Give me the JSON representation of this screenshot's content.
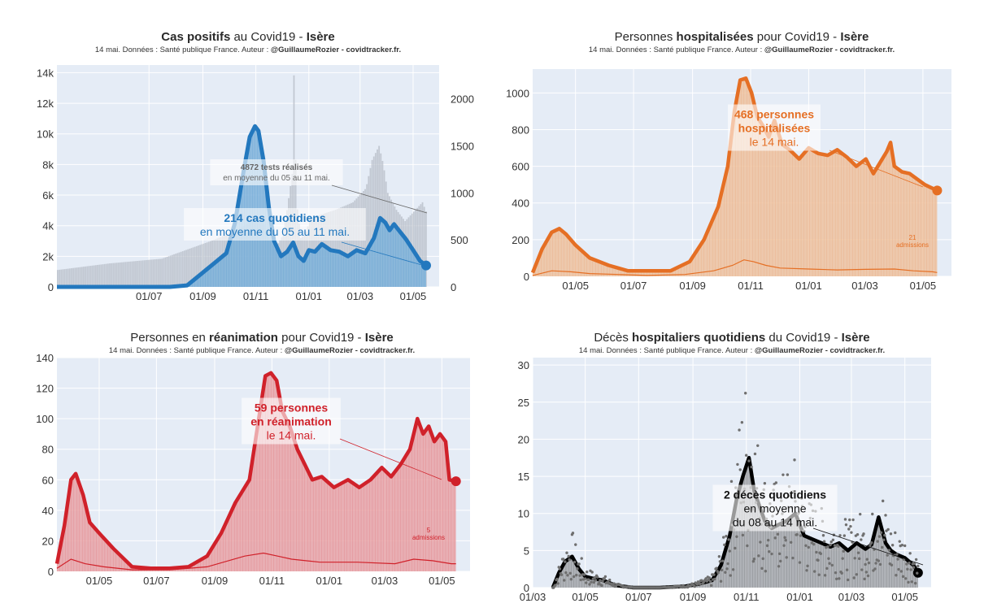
{
  "colors": {
    "plot_bg": "#e5ecf6",
    "grid": "#ffffff",
    "cases": "#2378be",
    "cases_fill": "#7fb3da",
    "tests_bar": "#b9bfc9",
    "hosp": "#e56f24",
    "hosp_fill": "#efc29f",
    "rea": "#d0212a",
    "rea_fill": "#e9a3a7",
    "deaths": "#000000",
    "deaths_fill": "#a6a8ab",
    "deaths_dots": "#6f6f6f"
  },
  "chart_data": [
    {
      "type": "area",
      "title": {
        "bold_prefix": "Cas positifs",
        "middle": " au Covid19 - ",
        "bold_suffix": "Isère"
      },
      "subtitle": {
        "text": "14 mai. Données : Santé publique France. Auteur : ",
        "author": "@GuillaumeRozier - covidtracker.fr."
      },
      "x_ticks": [
        "01/07",
        "01/09",
        "01/11",
        "01/01",
        "01/03",
        "01/05"
      ],
      "x_tick_days": [
        106,
        168,
        229,
        290,
        349,
        410
      ],
      "xlim_days": [
        0,
        440
      ],
      "y_ticks": [
        "0",
        "2k",
        "4k",
        "6k",
        "8k",
        "10k",
        "12k",
        "14k"
      ],
      "y_tick_values": [
        0,
        2000,
        4000,
        6000,
        8000,
        10000,
        12000,
        14000
      ],
      "ylim": [
        0,
        14500
      ],
      "y2_ticks": [
        "0",
        "500",
        "1000",
        "1500",
        "2000"
      ],
      "y2_tick_values": [
        0,
        500,
        1000,
        1500,
        2000
      ],
      "y2lim": [
        0,
        2360
      ],
      "series": [
        {
          "name": "tests",
          "kind": "bars_right_axis",
          "x_days": [
            0,
            60,
            120,
            150,
            180,
            210,
            225,
            235,
            240,
            250,
            260,
            270,
            272,
            275,
            280,
            285,
            290,
            300,
            320,
            340,
            355,
            362,
            370,
            375,
            380,
            390,
            400,
            410,
            420,
            425
          ],
          "values": [
            180,
            250,
            300,
            400,
            500,
            620,
            720,
            760,
            600,
            400,
            560,
            1200,
            2250,
            900,
            520,
            560,
            700,
            760,
            820,
            900,
            1050,
            1350,
            1500,
            1300,
            1000,
            820,
            700,
            800,
            900,
            780
          ]
        },
        {
          "name": "cas",
          "kind": "line_fill",
          "x_days": [
            0,
            40,
            80,
            110,
            130,
            150,
            165,
            180,
            195,
            205,
            215,
            222,
            228,
            232,
            238,
            244,
            250,
            258,
            265,
            272,
            278,
            284,
            290,
            297,
            305,
            315,
            325,
            335,
            345,
            355,
            365,
            372,
            378,
            383,
            388,
            395,
            402,
            410,
            418,
            425
          ],
          "values": [
            0,
            0,
            0,
            0,
            0,
            100,
            800,
            1500,
            2200,
            4200,
            7600,
            9800,
            10500,
            10200,
            8200,
            5200,
            3000,
            2000,
            2300,
            2900,
            2000,
            1700,
            2400,
            2300,
            2800,
            2400,
            2300,
            2000,
            2400,
            2200,
            3200,
            4500,
            4200,
            3700,
            4100,
            3600,
            3100,
            2400,
            1700,
            1400
          ]
        }
      ],
      "annotations": [
        {
          "bold": "4872 tests réalisés",
          "text": "en moyenne du 05 au 11 mai."
        },
        {
          "bold": "214 cas quotidiens",
          "text": "en moyenne du 05 au 11 mai."
        }
      ]
    },
    {
      "type": "area",
      "title": {
        "bold_prefix": "",
        "pre": "Personnes ",
        "bold_mid": "hospitalisées",
        "middle": " pour Covid19 - ",
        "bold_suffix": "Isère"
      },
      "subtitle": {
        "text": "14 mai. Données : Santé publique France. Auteur : ",
        "author": "@GuillaumeRozier - covidtracker.fr."
      },
      "x_ticks": [
        "01/05",
        "01/07",
        "01/09",
        "01/11",
        "01/01",
        "01/03",
        "01/05"
      ],
      "x_tick_days": [
        45,
        106,
        168,
        229,
        290,
        349,
        410
      ],
      "xlim_days": [
        0,
        440
      ],
      "y_ticks": [
        "0",
        "200",
        "400",
        "600",
        "800",
        "1000"
      ],
      "y_tick_values": [
        0,
        200,
        400,
        600,
        800,
        1000
      ],
      "ylim": [
        0,
        1130
      ],
      "series": [
        {
          "name": "hospitalisées",
          "kind": "line_fill",
          "x_days": [
            0,
            10,
            20,
            28,
            35,
            45,
            60,
            80,
            100,
            120,
            145,
            165,
            180,
            195,
            205,
            212,
            218,
            224,
            230,
            236,
            242,
            248,
            254,
            262,
            270,
            280,
            290,
            300,
            310,
            320,
            330,
            340,
            350,
            358,
            365,
            372,
            376,
            380,
            388,
            396,
            404,
            412,
            420,
            425
          ],
          "values": [
            20,
            150,
            240,
            260,
            230,
            170,
            100,
            60,
            30,
            30,
            30,
            80,
            200,
            380,
            600,
            900,
            1070,
            1080,
            1000,
            870,
            820,
            760,
            850,
            720,
            690,
            640,
            700,
            670,
            660,
            690,
            650,
            600,
            640,
            560,
            620,
            680,
            730,
            600,
            570,
            560,
            530,
            500,
            480,
            468
          ]
        },
        {
          "name": "admissions",
          "kind": "thin_line",
          "x_days": [
            0,
            20,
            40,
            60,
            90,
            120,
            160,
            190,
            210,
            222,
            232,
            245,
            260,
            290,
            320,
            350,
            380,
            400,
            420,
            425
          ],
          "values": [
            5,
            30,
            25,
            15,
            10,
            5,
            10,
            30,
            60,
            90,
            80,
            60,
            45,
            40,
            35,
            38,
            40,
            30,
            25,
            21
          ]
        }
      ],
      "annotations": [
        {
          "bold": "468 personnes\nhospitalisées",
          "text": "le 14 mai."
        },
        {
          "bold": "21",
          "text": "admissions"
        }
      ]
    },
    {
      "type": "area",
      "title": {
        "pre": "Personnes en ",
        "bold_mid": "réanimation",
        "middle": " pour Covid19 - ",
        "bold_suffix": "Isère"
      },
      "subtitle": {
        "text": "14 mai. Données : Santé publique France. Auteur : ",
        "author": "@GuillaumeRozier - covidtracker.fr."
      },
      "x_ticks": [
        "01/05",
        "01/07",
        "01/09",
        "01/11",
        "01/01",
        "01/03",
        "01/05"
      ],
      "x_tick_days": [
        45,
        106,
        168,
        229,
        290,
        349,
        410
      ],
      "xlim_days": [
        0,
        440
      ],
      "y_ticks": [
        "0",
        "20",
        "40",
        "60",
        "80",
        "100",
        "120",
        "140"
      ],
      "y_tick_values": [
        0,
        20,
        40,
        60,
        80,
        100,
        120,
        140
      ],
      "ylim": [
        0,
        140
      ],
      "series": [
        {
          "name": "réanimation",
          "kind": "line_fill",
          "x_days": [
            0,
            8,
            15,
            20,
            28,
            35,
            45,
            60,
            80,
            100,
            120,
            140,
            160,
            175,
            190,
            205,
            215,
            222,
            228,
            234,
            240,
            248,
            256,
            264,
            272,
            282,
            295,
            310,
            322,
            334,
            346,
            356,
            366,
            376,
            384,
            390,
            396,
            402,
            408,
            414,
            418,
            425
          ],
          "values": [
            5,
            30,
            60,
            64,
            50,
            32,
            25,
            15,
            3,
            2,
            2,
            3,
            10,
            25,
            45,
            60,
            100,
            128,
            130,
            125,
            105,
            95,
            80,
            70,
            60,
            62,
            55,
            60,
            55,
            60,
            68,
            62,
            70,
            80,
            100,
            90,
            95,
            85,
            90,
            85,
            60,
            59
          ]
        },
        {
          "name": "admissions",
          "kind": "thin_line",
          "x_days": [
            0,
            15,
            30,
            50,
            80,
            120,
            160,
            200,
            220,
            235,
            250,
            280,
            320,
            360,
            380,
            400,
            420,
            425
          ],
          "values": [
            2,
            8,
            5,
            3,
            1,
            1,
            3,
            10,
            12,
            10,
            8,
            6,
            6,
            5,
            8,
            7,
            5,
            5
          ]
        }
      ],
      "annotations": [
        {
          "bold": "59 personnes\nen réanimation",
          "text": "le 14 mai."
        },
        {
          "bold": "5",
          "text": "admissions"
        }
      ]
    },
    {
      "type": "line",
      "title": {
        "pre": "Décès ",
        "bold_mid": "hospitaliers quotidiens",
        "middle": " du Covid19 - ",
        "bold_suffix": "Isère"
      },
      "subtitle": {
        "text": "14 mai. Données : Santé publique France. Auteur : ",
        "author": "@GuillaumeRozier - covidtracker.fr."
      },
      "x_ticks": [
        "01/03",
        "01/05",
        "01/07",
        "01/09",
        "01/11",
        "01/01",
        "01/03",
        "01/05"
      ],
      "x_tick_days": [
        -15,
        45,
        106,
        168,
        229,
        290,
        349,
        410
      ],
      "xlim_days": [
        -15,
        440
      ],
      "y_ticks": [
        "0",
        "5",
        "10",
        "15",
        "20",
        "25",
        "30"
      ],
      "y_tick_values": [
        0,
        5,
        10,
        15,
        20,
        25,
        30
      ],
      "ylim": [
        0,
        31
      ],
      "series": [
        {
          "name": "décès",
          "kind": "line_fill",
          "x_days": [
            8,
            15,
            22,
            30,
            38,
            45,
            55,
            65,
            80,
            100,
            130,
            160,
            175,
            190,
            200,
            210,
            218,
            225,
            232,
            238,
            244,
            250,
            258,
            266,
            275,
            285,
            295,
            305,
            315,
            325,
            335,
            345,
            355,
            365,
            372,
            380,
            388,
            394,
            400,
            410,
            420,
            425
          ],
          "values": [
            0,
            2,
            3.5,
            4.2,
            2.5,
            1.5,
            1.2,
            1,
            0.3,
            0,
            0,
            0.2,
            0.5,
            1,
            3,
            7,
            12,
            15,
            17.5,
            13,
            11,
            9,
            8,
            8.5,
            9,
            10,
            7,
            6.5,
            6,
            5.5,
            6,
            5,
            6,
            5.2,
            5.8,
            9.5,
            6,
            5,
            4.5,
            4,
            3,
            2
          ]
        }
      ],
      "annotations": [
        {
          "bold": "2 décès quotidiens",
          "text": "en moyenne\ndu 08 au 14 mai."
        }
      ]
    }
  ]
}
